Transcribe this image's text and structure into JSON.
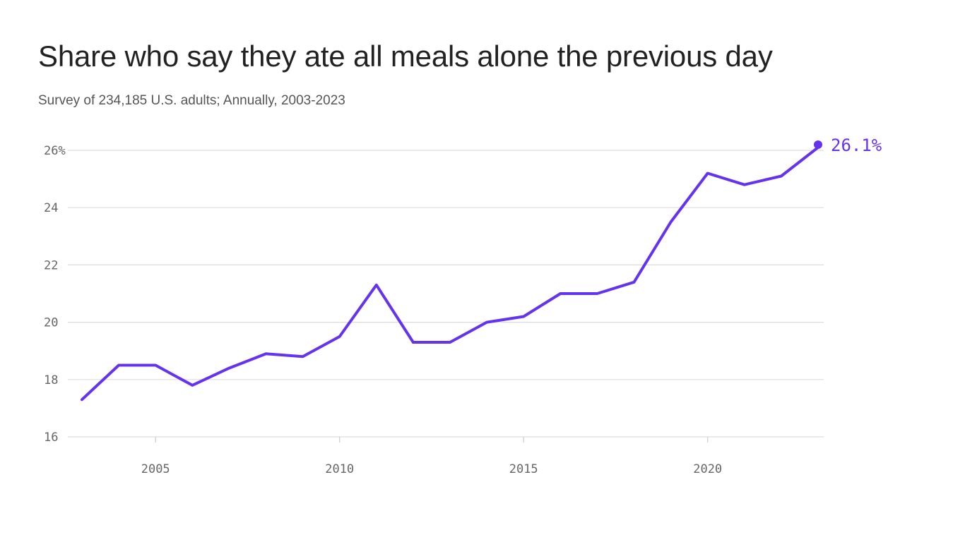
{
  "chart_data": {
    "type": "line",
    "title": "Share who say they ate all meals alone the previous day",
    "subtitle": "Survey of 234,185 U.S. adults; Annually, 2003-2023",
    "x": [
      2003,
      2004,
      2005,
      2006,
      2007,
      2008,
      2009,
      2010,
      2011,
      2012,
      2013,
      2014,
      2015,
      2016,
      2017,
      2018,
      2019,
      2020,
      2021,
      2022,
      2023
    ],
    "series": [
      {
        "values": [
          17.3,
          18.5,
          18.5,
          17.8,
          18.4,
          18.9,
          18.8,
          19.5,
          21.3,
          19.3,
          19.3,
          20.0,
          20.2,
          21.0,
          21.0,
          21.4,
          23.5,
          25.2,
          24.8,
          25.1,
          26.1
        ]
      }
    ],
    "xlim": [
      2003,
      2023
    ],
    "ylim": [
      16,
      26
    ],
    "x_ticks": [
      2005,
      2010,
      2015,
      2020
    ],
    "x_tick_labels": [
      "2005",
      "2010",
      "2015",
      "2020"
    ],
    "y_ticks": [
      16,
      18,
      20,
      22,
      24,
      26
    ],
    "y_tick_labels": [
      "16",
      "18",
      "20",
      "22",
      "24",
      "26%"
    ],
    "end_label": "26.1%",
    "grid": true,
    "line_color": "#6533ee",
    "grid_color": "#dddddd"
  }
}
